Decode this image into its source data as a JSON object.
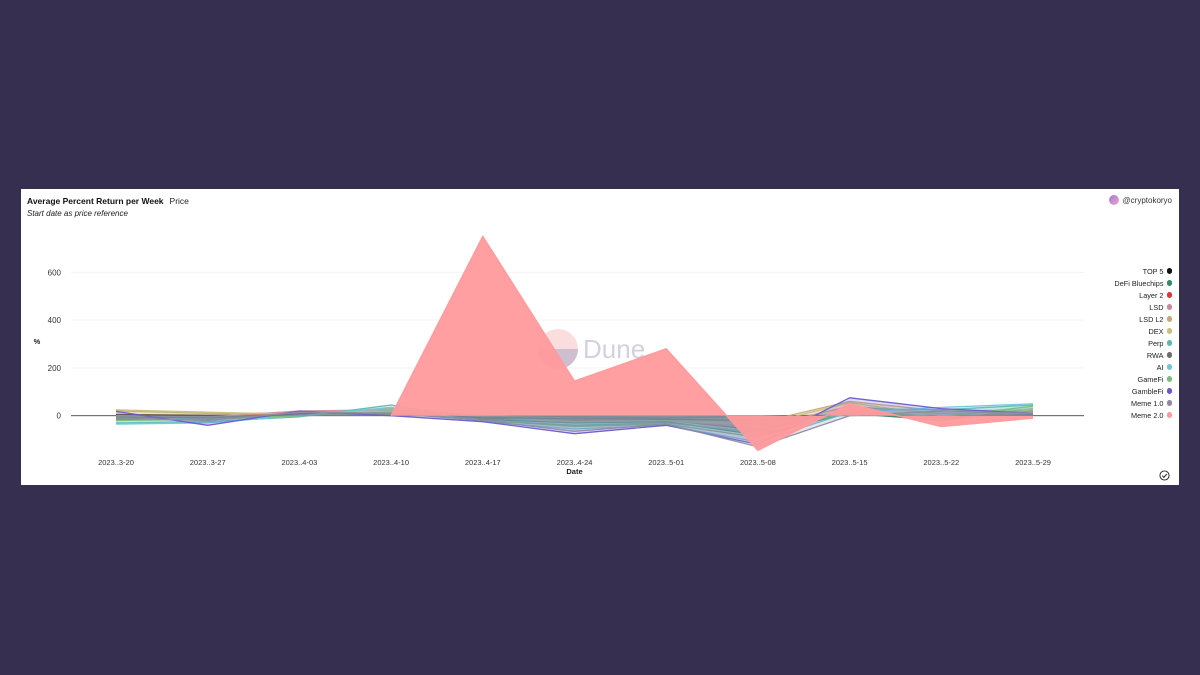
{
  "header": {
    "title": "Average Percent Return per Week",
    "tab_label": "Price",
    "subtitle": "Start date as price reference",
    "author": "@cryptokoryo"
  },
  "watermark": "Dune",
  "colors": {
    "background": "#372f4f",
    "card": "#ffffff"
  },
  "icons": {
    "author_avatar": "user-avatar-icon",
    "check": "check-circle-icon"
  },
  "chart_data": {
    "type": "area",
    "xlabel": "Date",
    "ylabel": "%",
    "ylim": [
      -160,
      760
    ],
    "yticks": [
      0,
      200,
      400,
      600
    ],
    "grid": true,
    "legend_position": "right",
    "categories": [
      "2023..3-20",
      "2023..3-27",
      "2023..4-03",
      "2023..4-10",
      "2023..4-17",
      "2023..4-24",
      "2023..5-01",
      "2023..5-08",
      "2023..5-15",
      "2023..5-22",
      "2023..5-29"
    ],
    "series": [
      {
        "name": "TOP 5",
        "color": "#111111",
        "values": [
          5,
          2,
          4,
          8,
          0,
          -5,
          -10,
          -2,
          3,
          0,
          2
        ]
      },
      {
        "name": "DeFi Bluechips",
        "color": "#2f8a66",
        "values": [
          -15,
          -18,
          5,
          20,
          -15,
          -30,
          -25,
          -80,
          10,
          -20,
          30
        ]
      },
      {
        "name": "Layer 2",
        "color": "#d9363e",
        "values": [
          -10,
          -5,
          10,
          15,
          -10,
          -20,
          -18,
          -60,
          20,
          -10,
          20
        ]
      },
      {
        "name": "LSD",
        "color": "#c98a9a",
        "values": [
          0,
          -5,
          20,
          25,
          -5,
          -15,
          -20,
          -50,
          40,
          10,
          15
        ]
      },
      {
        "name": "LSD L2",
        "color": "#c9a878",
        "values": [
          20,
          10,
          10,
          30,
          0,
          -10,
          -15,
          -30,
          60,
          20,
          25
        ]
      },
      {
        "name": "DEX",
        "color": "#c9c07a",
        "values": [
          25,
          15,
          5,
          20,
          -5,
          -25,
          -20,
          -40,
          55,
          0,
          30
        ]
      },
      {
        "name": "Perp",
        "color": "#5fb8ad",
        "values": [
          -30,
          -25,
          -5,
          45,
          -20,
          -40,
          -30,
          -70,
          30,
          25,
          45
        ]
      },
      {
        "name": "RWA",
        "color": "#6b6b6b",
        "values": [
          -5,
          -10,
          8,
          10,
          -8,
          -12,
          -15,
          -20,
          5,
          -5,
          5
        ]
      },
      {
        "name": "AI",
        "color": "#6fc8d8",
        "values": [
          -35,
          -30,
          0,
          35,
          -25,
          -55,
          -40,
          -110,
          15,
          35,
          50
        ]
      },
      {
        "name": "GameFi",
        "color": "#7bbd7a",
        "values": [
          -20,
          -15,
          0,
          15,
          -20,
          -45,
          -35,
          -90,
          20,
          -5,
          40
        ]
      },
      {
        "name": "GambleFi",
        "color": "#6a5acd",
        "values": [
          18,
          -40,
          20,
          0,
          -25,
          -75,
          -40,
          -120,
          75,
          30,
          10
        ]
      },
      {
        "name": "Meme 1.0",
        "color": "#8d8aa3",
        "values": [
          -10,
          -20,
          15,
          10,
          -20,
          -65,
          -35,
          -130,
          0,
          20,
          10
        ]
      },
      {
        "name": "Meme 2.0",
        "color": "#ff9a9c",
        "values": [
          null,
          null,
          null,
          0,
          750,
          145,
          280,
          -145,
          50,
          -45,
          -10
        ]
      }
    ]
  }
}
